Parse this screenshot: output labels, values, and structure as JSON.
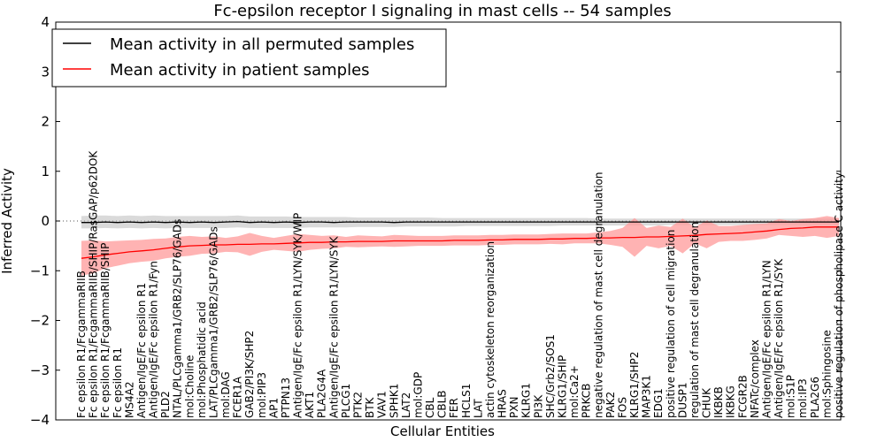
{
  "chart_data": {
    "type": "line",
    "title": "Fc-epsilon receptor I signaling in mast cells -- 54 samples",
    "xlabel": "Cellular Entities",
    "ylabel": "Inferred Activity",
    "ylim": [
      -4,
      4
    ],
    "yticks": [
      -4,
      -3,
      -2,
      -1,
      0,
      1,
      2,
      3,
      4
    ],
    "legend_position": "top-left",
    "colors": {
      "permuted": "#000000",
      "permuted_band": "#bbbbbb",
      "patient": "#ff0000",
      "patient_band": "#ff9999"
    },
    "categories": [
      "Fc epsilon R1/FcgammaRIIB",
      "Fc epsilon R1/FcgammaRIIB/SHIP/RasGAP/p62DOK",
      "Fc epsilon R1/FcgammaRIIB/SHIP",
      "Fc epsilon R1",
      "MS4A2",
      "Antigen/IgE/Fc epsilon R1",
      "Antigen/IgE/Fc epsilon R1/Fyn",
      "PLD2",
      "NTAL/PLCgamma1/GRB2/SLP76/GADs",
      "mol:Choline",
      "mol:Phosphatidic acid",
      "LAT/PLCgamma1/GRB2/SLP76/GADs",
      "mol:DAG",
      "FCER1A",
      "GAB2/PI3K/SHP2",
      "mol:PIP3",
      "AP1",
      "PTPN13",
      "Antigen/IgE/Fc epsilon R1/LYN/SYK/WIP",
      "AKT1",
      "PLA2G4A",
      "Antigen/IgE/Fc epsilon R1/LYN/SYK",
      "PLCG1",
      "PTK2",
      "BTK",
      "VAV1",
      "SPHK1",
      "LAT2",
      "mol:GDP",
      "CBL",
      "CBLB",
      "FER",
      "HCLS1",
      "LAT",
      "actin cytoskeleton reorganization",
      "HRAS",
      "PXN",
      "KLRG1",
      "PI3K",
      "SHC/Grb2/SOS1",
      "KLRG1/SHIP",
      "mol:Ca2+",
      "PRKCB",
      "negative regulation of mast cell degranulation",
      "PAK2",
      "FOS",
      "KLRG1/SHP2",
      "MAP3K1",
      "EDG1",
      "positive regulation of cell migration",
      "DUSP1",
      "regulation of mast cell degranulation",
      "CHUK",
      "IKBKB",
      "IKBKG",
      "FCGR2B",
      "NFATc/complex",
      "Antigen/IgE/Fc epsilon R1/LYN",
      "Antigen/IgE/Fc epsilon R1/SYK",
      "mol:S1P",
      "mol:IP3",
      "PLA2G6",
      "mol:Sphingosine",
      "positive regulation of phospholipase C activity"
    ],
    "series": [
      {
        "name": "Mean activity in all permuted samples",
        "values": [
          -0.03,
          -0.03,
          -0.02,
          -0.03,
          -0.02,
          -0.03,
          -0.02,
          -0.03,
          -0.02,
          -0.03,
          -0.02,
          -0.03,
          -0.02,
          -0.01,
          -0.03,
          -0.02,
          -0.03,
          -0.02,
          -0.03,
          -0.02,
          -0.02,
          -0.03,
          -0.02,
          -0.02,
          -0.02,
          -0.02,
          -0.03,
          -0.02,
          -0.02,
          -0.02,
          -0.02,
          -0.02,
          -0.02,
          -0.02,
          -0.02,
          -0.02,
          -0.02,
          -0.02,
          -0.02,
          -0.02,
          -0.02,
          -0.02,
          -0.02,
          -0.02,
          -0.02,
          -0.02,
          -0.02,
          -0.02,
          -0.02,
          -0.02,
          -0.02,
          -0.02,
          -0.02,
          -0.02,
          -0.02,
          -0.02,
          -0.02,
          -0.02,
          -0.02,
          -0.02,
          -0.02,
          -0.02,
          -0.02,
          -0.02
        ],
        "lower": [
          -0.15,
          -0.15,
          -0.14,
          -0.15,
          -0.14,
          -0.15,
          -0.14,
          -0.15,
          -0.14,
          -0.14,
          -0.14,
          -0.14,
          -0.14,
          -0.13,
          -0.14,
          -0.14,
          -0.14,
          -0.14,
          -0.14,
          -0.13,
          -0.13,
          -0.13,
          -0.13,
          -0.12,
          -0.12,
          -0.12,
          -0.12,
          -0.11,
          -0.11,
          -0.11,
          -0.11,
          -0.11,
          -0.1,
          -0.1,
          -0.1,
          -0.1,
          -0.1,
          -0.1,
          -0.1,
          -0.1,
          -0.09,
          -0.09,
          -0.09,
          -0.09,
          -0.09,
          -0.09,
          -0.09,
          -0.09,
          -0.09,
          -0.08,
          -0.08,
          -0.08,
          -0.08,
          -0.08,
          -0.08,
          -0.08,
          -0.08,
          -0.08,
          -0.08,
          -0.08,
          -0.08,
          -0.08,
          -0.08,
          -0.08
        ],
        "upper": [
          0.1,
          0.11,
          0.11,
          0.1,
          0.11,
          0.1,
          0.11,
          0.1,
          0.1,
          0.1,
          0.1,
          0.1,
          0.1,
          0.11,
          0.09,
          0.09,
          0.09,
          0.09,
          0.08,
          0.08,
          0.08,
          0.08,
          0.08,
          0.07,
          0.07,
          0.07,
          0.07,
          0.07,
          0.07,
          0.07,
          0.06,
          0.06,
          0.06,
          0.06,
          0.06,
          0.06,
          0.06,
          0.06,
          0.06,
          0.06,
          0.06,
          0.06,
          0.06,
          0.05,
          0.05,
          0.05,
          0.05,
          0.05,
          0.05,
          0.05,
          0.05,
          0.05,
          0.05,
          0.05,
          0.05,
          0.05,
          0.05,
          0.05,
          0.05,
          0.05,
          0.05,
          0.05,
          0.05,
          0.05
        ]
      },
      {
        "name": "Mean activity in patient samples",
        "values": [
          -0.75,
          -0.72,
          -0.68,
          -0.65,
          -0.62,
          -0.6,
          -0.58,
          -0.55,
          -0.52,
          -0.5,
          -0.49,
          -0.48,
          -0.48,
          -0.47,
          -0.47,
          -0.46,
          -0.46,
          -0.45,
          -0.44,
          -0.43,
          -0.43,
          -0.42,
          -0.42,
          -0.41,
          -0.41,
          -0.41,
          -0.4,
          -0.4,
          -0.4,
          -0.4,
          -0.4,
          -0.39,
          -0.39,
          -0.39,
          -0.38,
          -0.38,
          -0.37,
          -0.37,
          -0.37,
          -0.36,
          -0.36,
          -0.35,
          -0.35,
          -0.34,
          -0.34,
          -0.33,
          -0.33,
          -0.32,
          -0.32,
          -0.31,
          -0.3,
          -0.29,
          -0.27,
          -0.26,
          -0.25,
          -0.24,
          -0.22,
          -0.2,
          -0.17,
          -0.15,
          -0.14,
          -0.12,
          -0.12,
          -0.12
        ],
        "lower": [
          -1.1,
          -1.05,
          -0.95,
          -0.9,
          -0.85,
          -0.82,
          -0.8,
          -0.75,
          -0.72,
          -0.7,
          -0.66,
          -0.65,
          -0.62,
          -0.63,
          -0.7,
          -0.62,
          -0.58,
          -0.6,
          -0.62,
          -0.58,
          -0.56,
          -0.55,
          -0.52,
          -0.53,
          -0.52,
          -0.51,
          -0.52,
          -0.51,
          -0.5,
          -0.5,
          -0.5,
          -0.49,
          -0.49,
          -0.49,
          -0.48,
          -0.48,
          -0.47,
          -0.47,
          -0.47,
          -0.46,
          -0.47,
          -0.45,
          -0.45,
          -0.45,
          -0.48,
          -0.52,
          -0.72,
          -0.5,
          -0.55,
          -0.5,
          -0.65,
          -0.45,
          -0.55,
          -0.42,
          -0.4,
          -0.4,
          -0.38,
          -0.35,
          -0.28,
          -0.3,
          -0.32,
          -0.3,
          -0.34,
          -0.3
        ],
        "upper": [
          -0.4,
          -0.39,
          -0.41,
          -0.4,
          -0.39,
          -0.38,
          -0.36,
          -0.35,
          -0.32,
          -0.3,
          -0.32,
          -0.31,
          -0.34,
          -0.31,
          -0.24,
          -0.3,
          -0.34,
          -0.3,
          -0.26,
          -0.28,
          -0.3,
          -0.29,
          -0.32,
          -0.29,
          -0.3,
          -0.31,
          -0.28,
          -0.29,
          -0.3,
          -0.3,
          -0.3,
          -0.29,
          -0.29,
          -0.29,
          -0.28,
          -0.28,
          -0.27,
          -0.27,
          -0.27,
          -0.26,
          -0.25,
          -0.25,
          -0.25,
          -0.23,
          -0.2,
          -0.14,
          0.06,
          -0.14,
          -0.09,
          -0.12,
          0.05,
          -0.13,
          0.01,
          -0.1,
          -0.1,
          -0.08,
          -0.06,
          -0.05,
          0.04,
          0.0,
          0.04,
          0.06,
          0.1,
          0.06
        ]
      }
    ]
  }
}
